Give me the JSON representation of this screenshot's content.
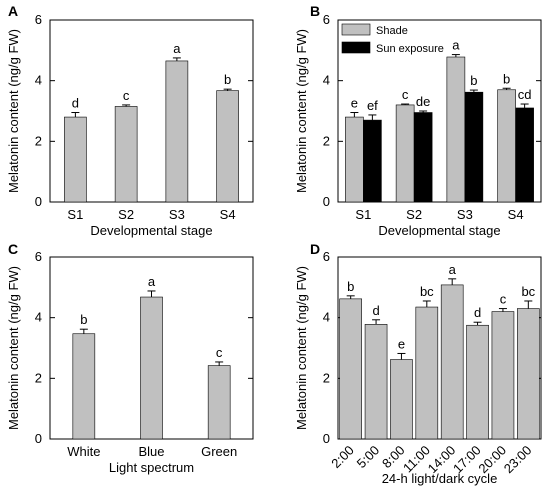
{
  "chart_data": [
    {
      "panel": "A",
      "type": "bar",
      "categories": [
        "S1",
        "S2",
        "S3",
        "S4"
      ],
      "values": [
        2.8,
        3.15,
        4.65,
        3.67
      ],
      "errors": [
        0.15,
        0.05,
        0.1,
        0.05
      ],
      "letters": [
        "d",
        "c",
        "a",
        "b"
      ],
      "xlabel": "Developmental stage",
      "ylabel": "Melatonin content (ng/g FW)",
      "ylim": [
        0,
        6
      ],
      "yticks": [
        "0",
        "2",
        "4",
        "6"
      ],
      "colors": {
        "bar": "#c0c0c0"
      }
    },
    {
      "panel": "B",
      "type": "bar",
      "categories": [
        "S1",
        "S2",
        "S3",
        "S4"
      ],
      "series": [
        {
          "name": "Shade",
          "values": [
            2.8,
            3.2,
            4.78,
            3.7
          ],
          "errors": [
            0.15,
            0.03,
            0.08,
            0.05
          ],
          "letters": [
            "e",
            "c",
            "a",
            "b"
          ],
          "color": "#c0c0c0"
        },
        {
          "name": "Sun exposure",
          "values": [
            2.7,
            2.95,
            3.62,
            3.1
          ],
          "errors": [
            0.17,
            0.05,
            0.07,
            0.13
          ],
          "letters": [
            "ef",
            "de",
            "b",
            "cd"
          ],
          "color": "#000000"
        }
      ],
      "xlabel": "Developmental stage",
      "ylabel": "Melatonin content (ng/g FW)",
      "ylim": [
        0,
        6
      ],
      "yticks": [
        "0",
        "2",
        "4",
        "6"
      ],
      "legend_position": "top-left"
    },
    {
      "panel": "C",
      "type": "bar",
      "categories": [
        "White",
        "Blue",
        "Green"
      ],
      "values": [
        3.47,
        4.68,
        2.42
      ],
      "errors": [
        0.15,
        0.2,
        0.12
      ],
      "letters": [
        "b",
        "a",
        "c"
      ],
      "xlabel": "Light spectrum",
      "ylabel": "Melatonin content (ng/g FW)",
      "ylim": [
        0,
        6
      ],
      "yticks": [
        "0",
        "2",
        "4",
        "6"
      ],
      "colors": {
        "bar": "#c0c0c0"
      }
    },
    {
      "panel": "D",
      "type": "bar",
      "categories": [
        "2:00",
        "5:00",
        "8:00",
        "11:00",
        "14:00",
        "17:00",
        "20:00",
        "23:00"
      ],
      "values": [
        4.62,
        3.78,
        2.62,
        4.35,
        5.08,
        3.75,
        4.2,
        4.3
      ],
      "errors": [
        0.1,
        0.15,
        0.2,
        0.2,
        0.2,
        0.1,
        0.1,
        0.25
      ],
      "letters": [
        "b",
        "d",
        "e",
        "bc",
        "a",
        "d",
        "c",
        "bc"
      ],
      "xlabel": "24-h light/dark cycle",
      "ylabel": "Melatonin content (ng/g FW)",
      "ylim": [
        0,
        6
      ],
      "yticks": [
        "0",
        "2",
        "4",
        "6"
      ],
      "colors": {
        "bar": "#c0c0c0"
      }
    }
  ]
}
